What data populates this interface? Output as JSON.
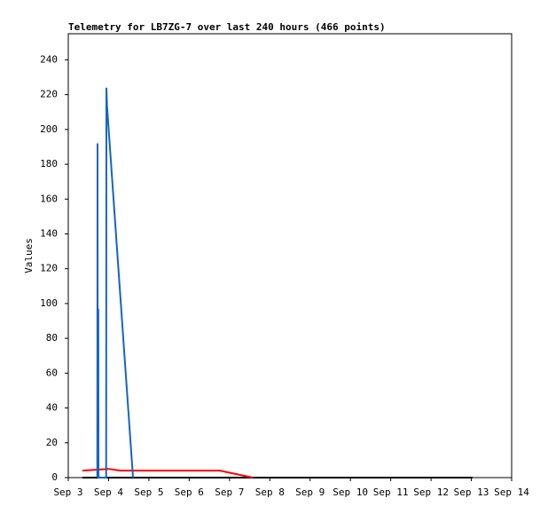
{
  "chart_data": {
    "type": "line",
    "title": "Telemetry for LB7ZG-7 over last 240 hours (466 points)",
    "y_label": "Values",
    "xlim": [
      3,
      14
    ],
    "xticks": [
      {
        "value": 3,
        "label": "Sep 3"
      },
      {
        "value": 4,
        "label": "Sep 4"
      },
      {
        "value": 5,
        "label": "Sep 5"
      },
      {
        "value": 6,
        "label": "Sep 6"
      },
      {
        "value": 7,
        "label": "Sep 7"
      },
      {
        "value": 8,
        "label": "Sep 8"
      },
      {
        "value": 9,
        "label": "Sep 9"
      },
      {
        "value": 10,
        "label": "Sep 10"
      },
      {
        "value": 11,
        "label": "Sep 11"
      },
      {
        "value": 12,
        "label": "Sep 12"
      },
      {
        "value": 13,
        "label": "Sep 13"
      },
      {
        "value": 14,
        "label": "Sep 14"
      }
    ],
    "ylim": [
      0,
      255
    ],
    "yticks": [
      0,
      20,
      40,
      60,
      80,
      100,
      120,
      140,
      160,
      180,
      200,
      220,
      240
    ],
    "series": [
      {
        "color": "#000000",
        "x": [
          3.35,
          13.03
        ],
        "values": [
          0,
          0
        ]
      },
      {
        "color": "#ff0000",
        "x": [
          3.35,
          4.0,
          4.3,
          6.76,
          7.58
        ],
        "values": [
          4,
          5,
          4,
          4,
          0
        ]
      },
      {
        "color": "#1565c0",
        "x": [
          3.72,
          3.726,
          3.73,
          3.745,
          3.75,
          3.94,
          3.946,
          3.96,
          4.606
        ],
        "values": [
          0,
          192,
          0,
          97,
          0,
          0,
          224,
          214,
          0
        ]
      }
    ]
  }
}
